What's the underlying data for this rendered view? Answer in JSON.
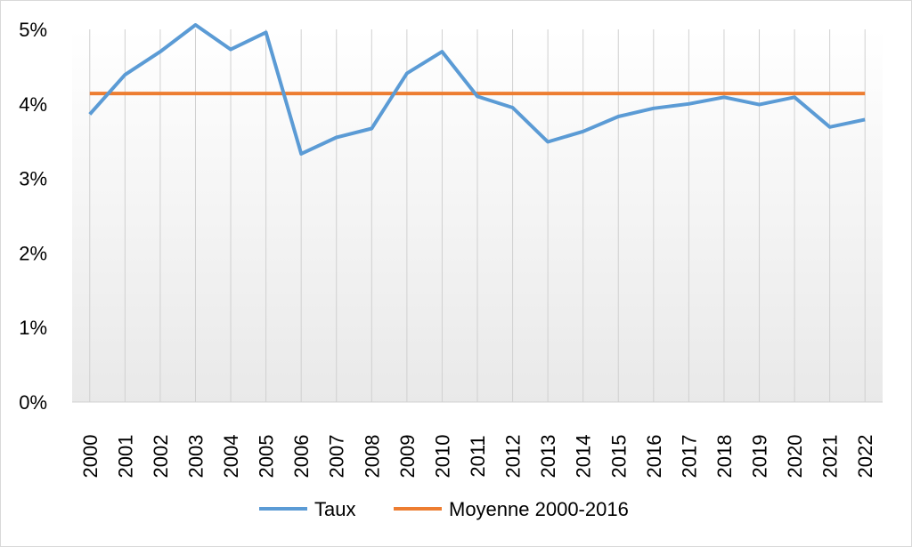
{
  "chart_data": {
    "type": "line",
    "title": "",
    "xlabel": "",
    "ylabel": "",
    "x": [
      "2000",
      "2001",
      "2002",
      "2003",
      "2004",
      "2005",
      "2006",
      "2007",
      "2008",
      "2009",
      "2010",
      "2011",
      "2012",
      "2013",
      "2014",
      "2015",
      "2016",
      "2017",
      "2018",
      "2019",
      "2020",
      "2021",
      "2022"
    ],
    "series": [
      {
        "name": "Taux",
        "color": "#5b9bd5",
        "values": [
          3.86,
          4.39,
          4.7,
          5.06,
          4.73,
          4.96,
          3.33,
          3.55,
          3.67,
          4.41,
          4.7,
          4.1,
          3.95,
          3.49,
          3.63,
          3.83,
          3.94,
          4.0,
          4.09,
          3.99,
          4.09,
          3.69,
          3.79
        ]
      },
      {
        "name": "Moyenne 2000-2016",
        "color": "#ed7d31",
        "values": [
          4.14,
          4.14,
          4.14,
          4.14,
          4.14,
          4.14,
          4.14,
          4.14,
          4.14,
          4.14,
          4.14,
          4.14,
          4.14,
          4.14,
          4.14,
          4.14,
          4.14,
          4.14,
          4.14,
          4.14,
          4.14,
          4.14,
          4.14
        ]
      }
    ],
    "ylim": [
      0,
      5
    ],
    "yticks": [
      0,
      1,
      2,
      3,
      4,
      5
    ],
    "ytick_labels": [
      "0%",
      "1%",
      "2%",
      "3%",
      "4%",
      "5%"
    ],
    "grid": "vertical",
    "legend_position": "bottom"
  }
}
